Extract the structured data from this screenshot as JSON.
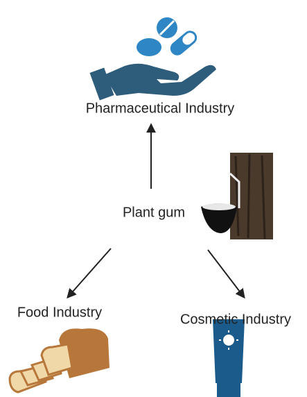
{
  "nodes": [
    {
      "label": "Pharmaceutical Industry"
    },
    {
      "label": "Plant gum"
    },
    {
      "label": "Food Industry"
    },
    {
      "label": "Cosmetic Industry"
    }
  ]
}
